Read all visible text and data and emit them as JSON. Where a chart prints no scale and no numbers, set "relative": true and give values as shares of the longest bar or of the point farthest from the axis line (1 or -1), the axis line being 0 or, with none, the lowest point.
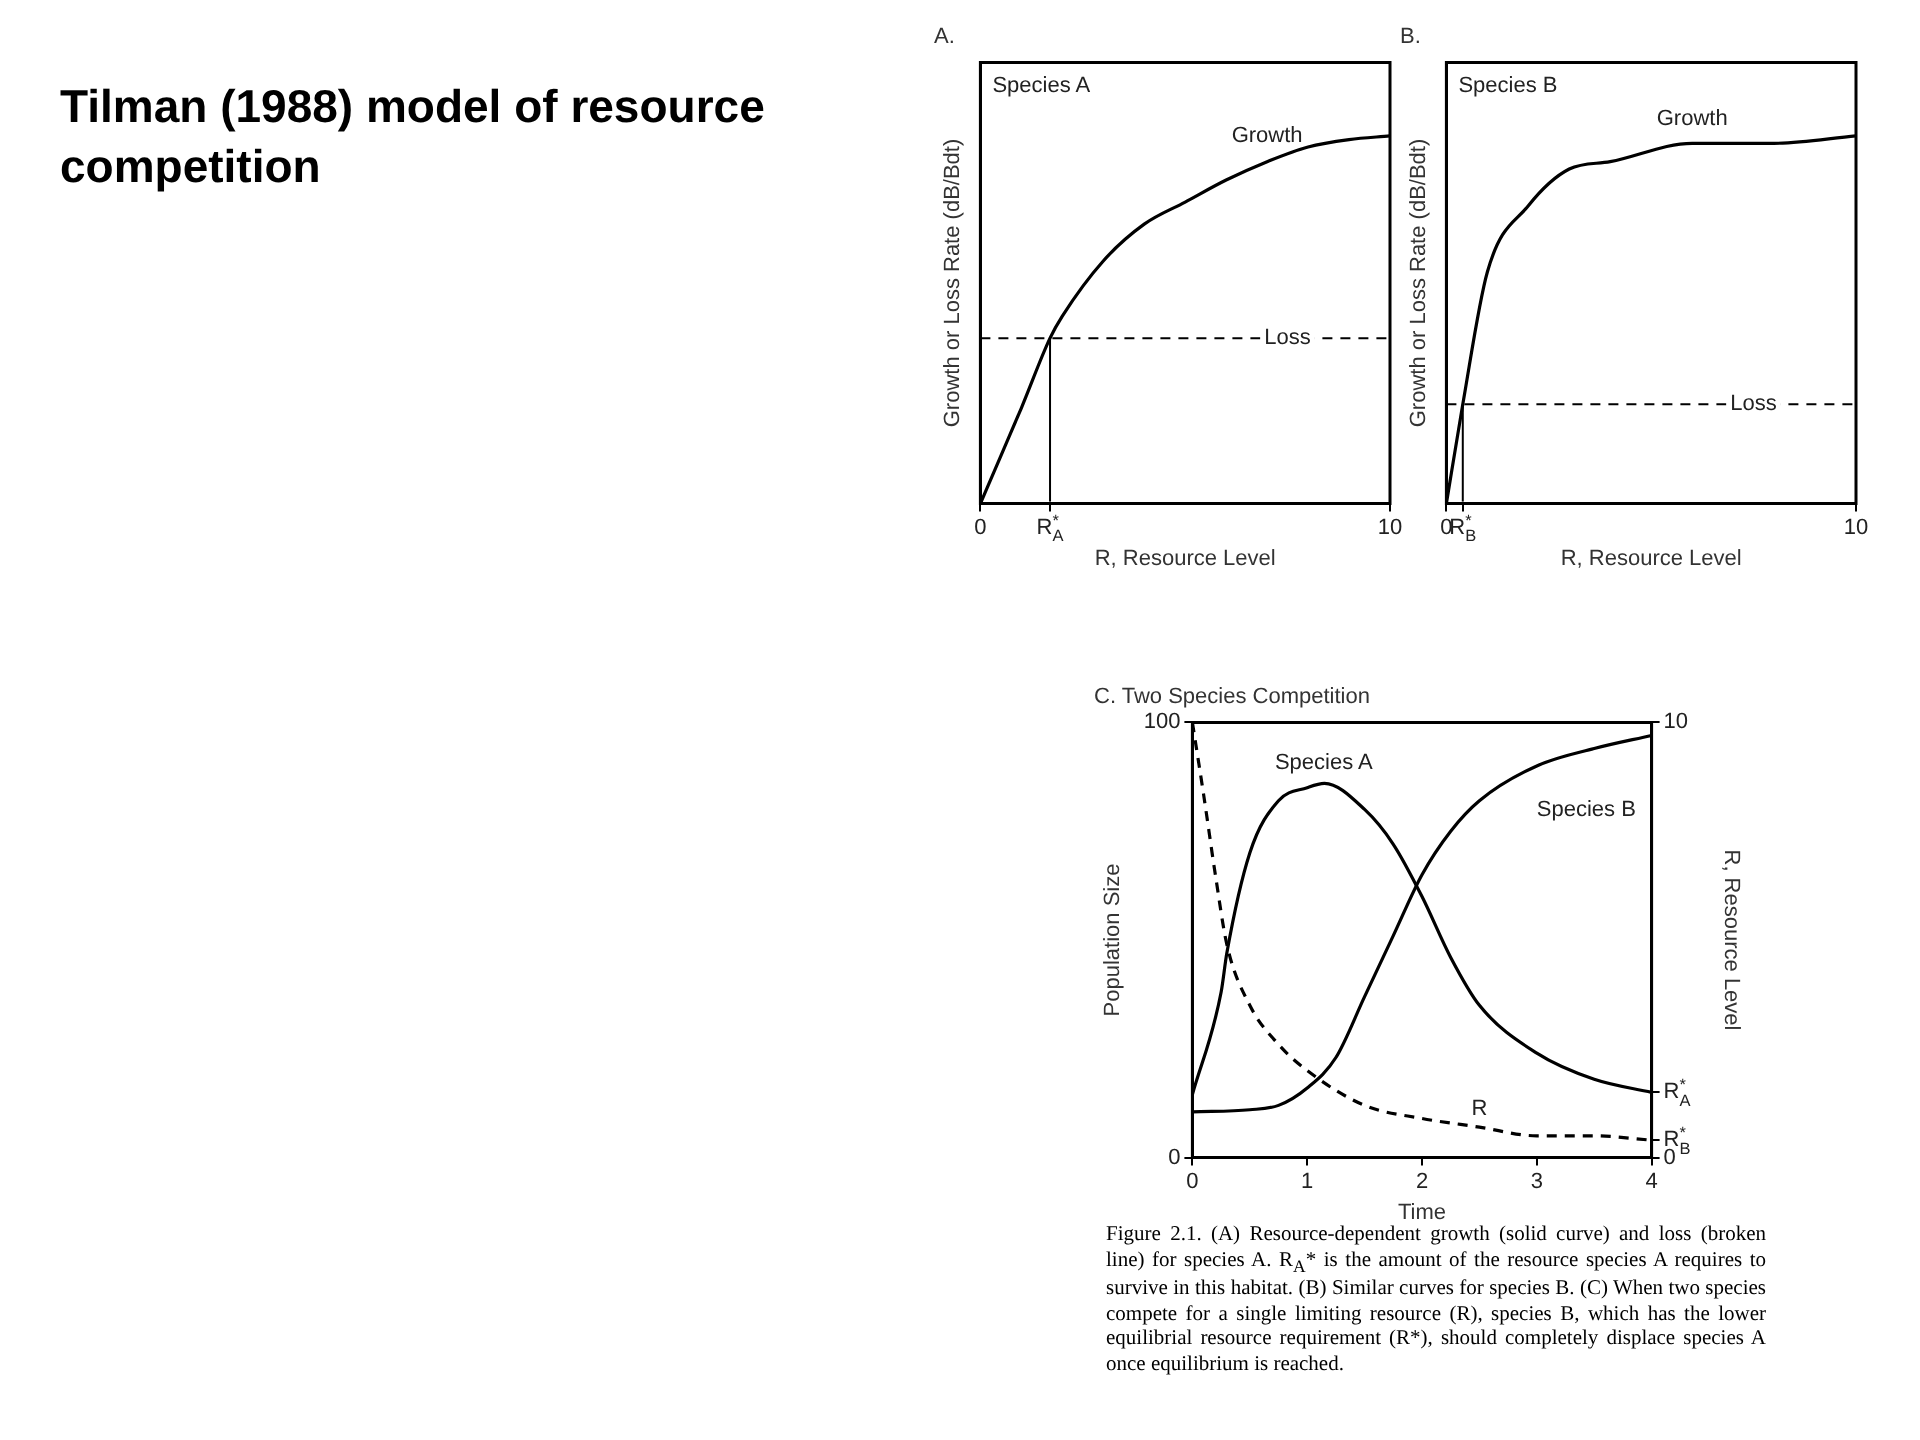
{
  "chart_data": [
    {
      "type": "other",
      "title": "Tilman (1988) model of resource competition",
      "annotations": [
        "Figure 2.1. (A) Resource-dependent growth (solid curve) and loss (broken line) for species A. R$_{A}$* is the amount of the resource species A requires to survive in this habitat. (B) Similar curves for species B. (C) When two species compete for a single limiting resource (R), species B, which has the lower equilibrial resource requirement (R*), should completely displace species A once equilibrium is reached."
      ]
    },
    {
      "type": "line",
      "title": "A.",
      "xlabel": "R, Resource Level",
      "ylabel": "Growth or Loss Rate (dB/Bdt)",
      "relative": true,
      "xlim": [
        0,
        10
      ],
      "xticks": [
        0,
        {
          "value": 1.7,
          "label": "R$^{*}$$_{A}$"
        },
        10
      ],
      "series": [
        {
          "name": "Growth",
          "color": "#000000",
          "x": [
            0,
            0.5,
            1,
            1.7,
            2,
            3,
            4,
            5,
            6,
            7,
            8,
            9,
            10
          ],
          "values": [
            0,
            0.13,
            0.26,
            0.45,
            0.51,
            0.66,
            0.76,
            0.82,
            0.88,
            0.93,
            0.97,
            0.99,
            1
          ]
        }
      ],
      "ref_lines": [
        {
          "axis": "y",
          "value": 0.45,
          "label": "Loss",
          "line_style": "dashed",
          "color": "#000000"
        },
        {
          "axis": "x",
          "value": 1.7,
          "color": "#000000"
        }
      ],
      "annotations": [
        "Species A"
      ]
    },
    {
      "type": "line",
      "title": "B.",
      "xlabel": "R, Resource Level",
      "ylabel": "Growth or Loss Rate (dB/Bdt)",
      "relative": true,
      "xlim": [
        0,
        10
      ],
      "xticks": [
        0,
        {
          "value": 0.4,
          "label": "R$^{*}$$_{B}$"
        },
        10
      ],
      "series": [
        {
          "name": "Growth",
          "color": "#000000",
          "x": [
            0,
            0.4,
            1,
            2,
            3,
            4,
            6,
            8,
            10
          ],
          "values": [
            0,
            0.27,
            0.63,
            0.81,
            0.91,
            0.93,
            0.98,
            0.98,
            1
          ]
        }
      ],
      "ref_lines": [
        {
          "axis": "y",
          "value": 0.27,
          "label": "Loss",
          "line_style": "dashed",
          "color": "#000000"
        },
        {
          "axis": "x",
          "value": 0.4,
          "color": "#000000"
        }
      ],
      "annotations": [
        "Species B"
      ]
    },
    {
      "type": "line",
      "title": "C. Two Species Competition",
      "xlabel": "Time",
      "ylabel": "Population Size",
      "y2label": "R, Resource Level",
      "xlim": [
        0,
        4
      ],
      "xticks": [
        0,
        1,
        2,
        3,
        4
      ],
      "ylim": [
        0,
        100
      ],
      "yticks": [
        0,
        100
      ],
      "y2lim": [
        0,
        10
      ],
      "y2ticks": [
        0,
        {
          "value": 0.4,
          "label": "R$^{*}$$_{B}$"
        },
        {
          "value": 1.5,
          "label": "R$^{*}$$_{A}$"
        },
        10
      ],
      "series": [
        {
          "name": "Species A",
          "color": "#000000",
          "x": [
            0,
            0.25,
            0.3,
            0.5,
            0.75,
            1,
            1.15,
            1.5,
            1.75,
            2,
            2.25,
            2.5,
            3,
            3.5,
            4
          ],
          "values": [
            14.5,
            38,
            47,
            70,
            82,
            85,
            86,
            80,
            72,
            60,
            46,
            35,
            24,
            18,
            15
          ]
        },
        {
          "name": "Species B",
          "color": "#000000",
          "x": [
            0,
            0.5,
            0.75,
            1,
            1.25,
            1.5,
            1.75,
            2,
            2.25,
            2.5,
            3,
            3.5,
            4
          ],
          "values": [
            10.5,
            11,
            12,
            16,
            23,
            37,
            51,
            65,
            75,
            82,
            90,
            94,
            97
          ]
        },
        {
          "name": "R",
          "color": "#000000",
          "axis": "y2",
          "line_style": "dashed",
          "x": [
            0,
            0.1,
            0.2,
            0.3,
            0.5,
            0.75,
            1,
            1.5,
            2,
            2.5,
            3,
            3.5,
            4
          ],
          "values": [
            10,
            8.3,
            6.5,
            4.9,
            3.5,
            2.6,
            2.0,
            1.2,
            0.9,
            0.7,
            0.5,
            0.5,
            0.4
          ]
        }
      ]
    }
  ]
}
